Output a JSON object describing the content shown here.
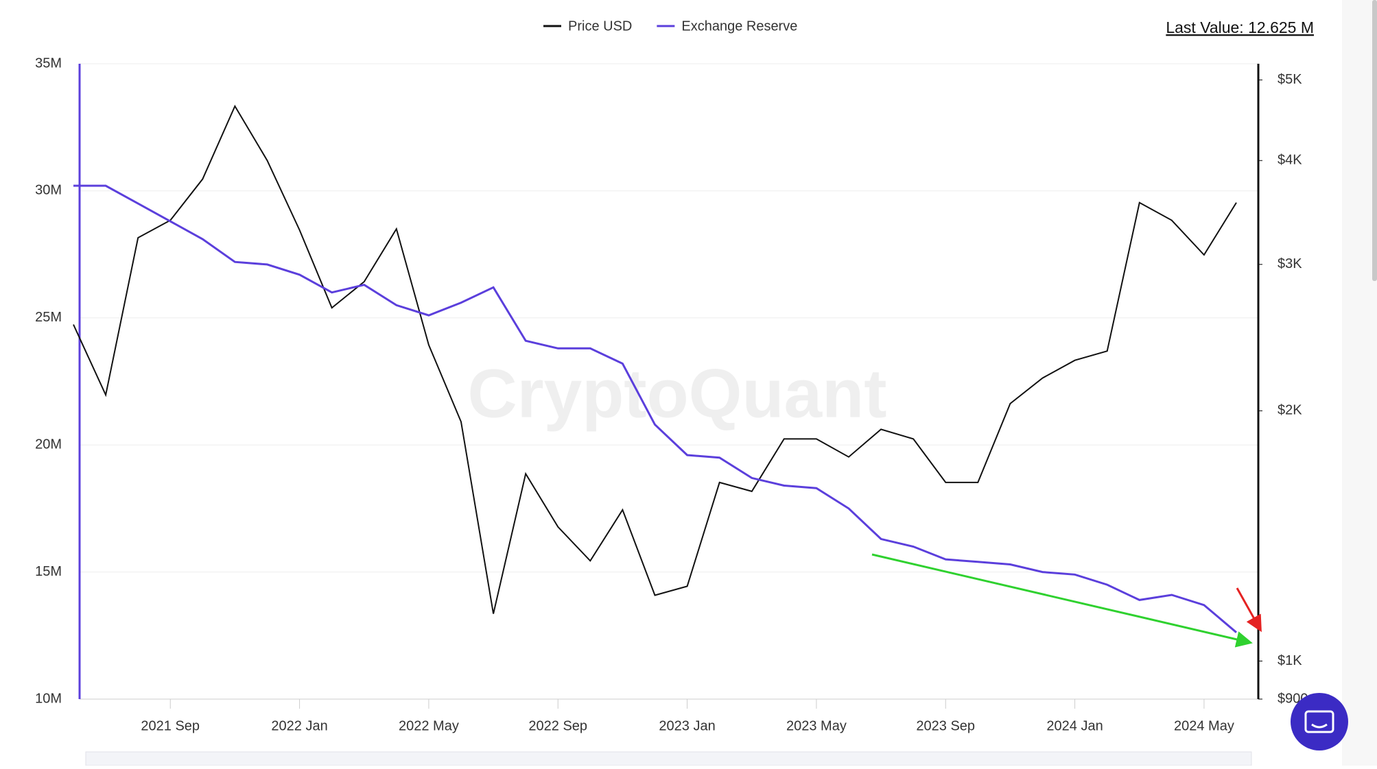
{
  "chart_data": {
    "type": "line",
    "watermark": "CryptoQuant",
    "last_value_label": "Last Value: 12.625 M",
    "x": [
      "2021-06",
      "2021-07",
      "2021-08",
      "2021-09",
      "2021-10",
      "2021-11",
      "2021-12",
      "2022-01",
      "2022-02",
      "2022-03",
      "2022-04",
      "2022-05",
      "2022-06",
      "2022-07",
      "2022-08",
      "2022-09",
      "2022-10",
      "2022-11",
      "2022-12",
      "2023-01",
      "2023-02",
      "2023-03",
      "2023-04",
      "2023-05",
      "2023-06",
      "2023-07",
      "2023-08",
      "2023-09",
      "2023-10",
      "2023-11",
      "2023-12",
      "2024-01",
      "2024-02",
      "2024-03",
      "2024-04",
      "2024-05",
      "2024-06"
    ],
    "xlim": [
      "2021-06",
      "2024-06"
    ],
    "xticks": [
      {
        "value": "2021-09",
        "label": "2021 Sep"
      },
      {
        "value": "2022-01",
        "label": "2022 Jan"
      },
      {
        "value": "2022-05",
        "label": "2022 May"
      },
      {
        "value": "2022-09",
        "label": "2022 Sep"
      },
      {
        "value": "2023-01",
        "label": "2023 Jan"
      },
      {
        "value": "2023-05",
        "label": "2023 May"
      },
      {
        "value": "2023-09",
        "label": "2023 Sep"
      },
      {
        "value": "2024-01",
        "label": "2024 Jan"
      },
      {
        "value": "2024-05",
        "label": "2024 May"
      }
    ],
    "ylim": [
      10000000,
      35000000
    ],
    "yticks": [
      {
        "value": 10000000,
        "label": "10M"
      },
      {
        "value": 15000000,
        "label": "15M"
      },
      {
        "value": 20000000,
        "label": "20M"
      },
      {
        "value": 25000000,
        "label": "25M"
      },
      {
        "value": 30000000,
        "label": "30M"
      },
      {
        "value": 35000000,
        "label": "35M"
      }
    ],
    "y2lim": [
      900,
      5230
    ],
    "y2scale": "log",
    "y2ticks": [
      {
        "value": 900,
        "label": "$900"
      },
      {
        "value": 1000,
        "label": "$1K"
      },
      {
        "value": 2000,
        "label": "$2K"
      },
      {
        "value": 3000,
        "label": "$3K"
      },
      {
        "value": 4000,
        "label": "$4K"
      },
      {
        "value": 5000,
        "label": "$5K"
      }
    ],
    "grid": true,
    "series": [
      {
        "name": "Price USD",
        "color": "#111111",
        "axis": "y2",
        "values": [
          2540,
          2090,
          3230,
          3390,
          3800,
          4650,
          4000,
          3300,
          2660,
          2860,
          3310,
          2400,
          1940,
          1140,
          1680,
          1450,
          1320,
          1520,
          1200,
          1230,
          1640,
          1600,
          1850,
          1850,
          1760,
          1900,
          1850,
          1640,
          1640,
          2040,
          2190,
          2300,
          2360,
          3560,
          3390,
          3080,
          3560
        ]
      },
      {
        "name": "Exchange Reserve",
        "color": "#5b3fdc",
        "values": [
          30200000,
          30200000,
          29500000,
          28800000,
          28100000,
          27200000,
          27100000,
          26700000,
          26000000,
          26300000,
          25500000,
          25100000,
          25600000,
          26200000,
          24100000,
          23800000,
          23800000,
          23200000,
          20800000,
          19600000,
          19500000,
          18700000,
          18400000,
          18300000,
          17500000,
          16300000,
          16000000,
          15500000,
          15400000,
          15300000,
          15000000,
          14900000,
          14500000,
          13900000,
          14100000,
          13700000,
          12625000
        ]
      }
    ]
  }
}
